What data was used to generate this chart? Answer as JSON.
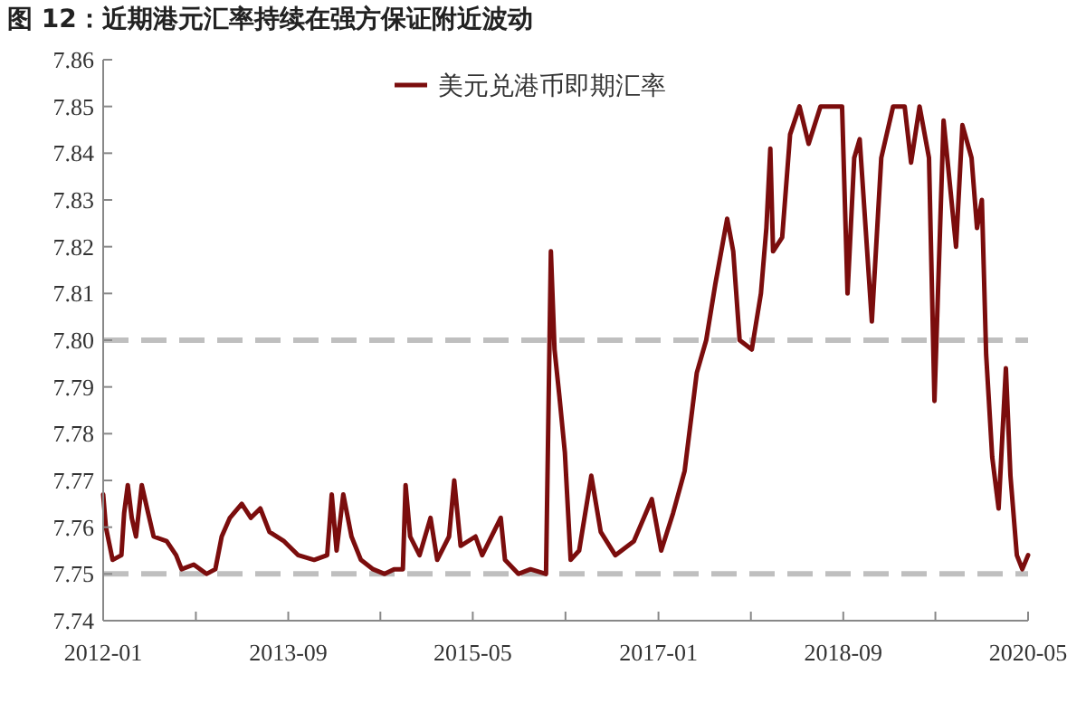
{
  "chart_data": {
    "type": "line",
    "title": "图 12：近期港元汇率持续在强方保证附近波动",
    "x": [
      "2012-01-01",
      "2012-01-10",
      "2012-02-01",
      "2012-03-01",
      "2012-03-10",
      "2012-03-22",
      "2012-04-04",
      "2012-04-18",
      "2012-05-07",
      "2012-05-28",
      "2012-06-15",
      "2012-07-28",
      "2012-08-28",
      "2012-09-15",
      "2012-10-25",
      "2012-12-06",
      "2013-01-04",
      "2013-01-25",
      "2013-02-21",
      "2013-04-01",
      "2013-05-01",
      "2013-06-01",
      "2013-07-01",
      "2013-08-18",
      "2013-10-04",
      "2013-11-25",
      "2014-01-07",
      "2014-01-22",
      "2014-02-07",
      "2014-03-01",
      "2014-03-28",
      "2014-04-28",
      "2014-06-07",
      "2014-07-15",
      "2014-08-15",
      "2014-09-13",
      "2014-09-22",
      "2014-10-07",
      "2014-11-07",
      "2014-12-13",
      "2015-01-04",
      "2015-02-12",
      "2015-03-01",
      "2015-03-22",
      "2015-05-10",
      "2015-06-01",
      "2015-08-01",
      "2015-08-15",
      "2015-09-28",
      "2015-11-07",
      "2015-12-28",
      "2016-01-13",
      "2016-01-25",
      "2016-02-10",
      "2016-02-28",
      "2016-03-18",
      "2016-04-15",
      "2016-05-25",
      "2016-06-25",
      "2016-08-12",
      "2016-10-12",
      "2016-12-10",
      "2017-01-10",
      "2017-02-18",
      "2017-03-28",
      "2017-05-07",
      "2017-06-07",
      "2017-07-07",
      "2017-08-15",
      "2017-09-04",
      "2017-09-25",
      "2017-11-04",
      "2017-12-04",
      "2017-12-22",
      "2018-01-04",
      "2018-01-13",
      "2018-02-12",
      "2018-03-10",
      "2018-04-10",
      "2018-05-10",
      "2018-06-18",
      "2018-08-28",
      "2018-09-15",
      "2018-10-07",
      "2018-10-25",
      "2018-12-04",
      "2019-01-04",
      "2019-02-12",
      "2019-03-22",
      "2019-04-12",
      "2019-05-10",
      "2019-06-10",
      "2019-06-28",
      "2019-07-28",
      "2019-09-07",
      "2019-09-28",
      "2019-10-28",
      "2019-11-15",
      "2019-12-01",
      "2019-12-15",
      "2020-01-04",
      "2020-01-25",
      "2020-02-18",
      "2020-03-04",
      "2020-03-25",
      "2020-04-12",
      "2020-05-01"
    ],
    "series": [
      {
        "name": "美元兑港币即期汇率",
        "color": "#7b0d0d",
        "values": [
          7.767,
          7.76,
          7.753,
          7.754,
          7.763,
          7.769,
          7.762,
          7.758,
          7.769,
          7.763,
          7.758,
          7.757,
          7.754,
          7.751,
          7.752,
          7.75,
          7.751,
          7.758,
          7.762,
          7.765,
          7.762,
          7.764,
          7.759,
          7.757,
          7.754,
          7.753,
          7.754,
          7.767,
          7.755,
          7.767,
          7.758,
          7.753,
          7.751,
          7.75,
          7.751,
          7.751,
          7.769,
          7.758,
          7.754,
          7.762,
          7.753,
          7.758,
          7.77,
          7.756,
          7.758,
          7.754,
          7.762,
          7.753,
          7.75,
          7.751,
          7.75,
          7.819,
          7.798,
          7.788,
          7.776,
          7.753,
          7.755,
          7.771,
          7.759,
          7.754,
          7.757,
          7.766,
          7.755,
          7.763,
          7.772,
          7.793,
          7.8,
          7.812,
          7.826,
          7.819,
          7.8,
          7.798,
          7.81,
          7.824,
          7.841,
          7.819,
          7.822,
          7.844,
          7.85,
          7.842,
          7.85,
          7.85,
          7.81,
          7.839,
          7.843,
          7.804,
          7.839,
          7.85,
          7.85,
          7.838,
          7.85,
          7.839,
          7.787,
          7.847,
          7.82,
          7.846,
          7.839,
          7.824,
          7.83,
          7.797,
          7.775,
          7.764,
          7.794,
          7.771,
          7.754,
          7.751,
          7.754
        ]
      }
    ],
    "xlim": [
      "2012-01",
      "2020-05"
    ],
    "xticks": [
      "2012-01",
      {
        "value": "2012-11",
        "label": null
      },
      "2013-09",
      {
        "value": "2014-07",
        "label": null
      },
      "2015-05",
      {
        "value": "2016-03",
        "label": null
      },
      "2017-01",
      {
        "value": "2017-11",
        "label": null
      },
      "2018-09",
      {
        "value": "2019-07",
        "label": null
      },
      "2020-05"
    ],
    "ylim": [
      7.74,
      7.86
    ],
    "yticks": [
      7.74,
      7.75,
      7.76,
      7.77,
      7.78,
      7.79,
      {
        "value": 7.8,
        "label": "7.80"
      },
      7.81,
      7.82,
      7.83,
      7.84,
      7.85,
      7.86
    ],
    "ref_lines": [
      {
        "axis": "y",
        "value": 7.8,
        "color": "#bfbfbf",
        "line_style": "dashed"
      },
      {
        "axis": "y",
        "value": 7.75,
        "color": "#bfbfbf",
        "line_style": "dashed"
      }
    ],
    "legend": "top",
    "grid": false,
    "line_style": "solid",
    "marker": "none"
  }
}
